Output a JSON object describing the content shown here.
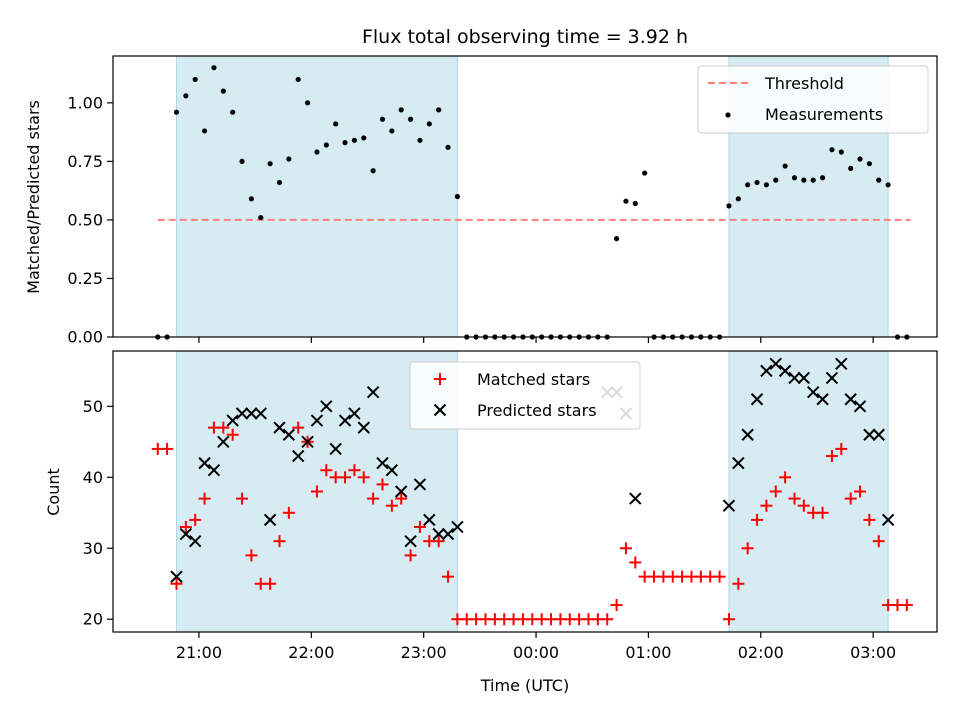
{
  "chart_data": [
    {
      "type": "scatter",
      "title": "Flux total observing time = 3.92 h",
      "xlabel": "",
      "ylabel": "Matched/Predicted stars",
      "ylim": [
        0,
        1.2
      ],
      "yticks": [
        "0.00",
        "0.25",
        "0.50",
        "0.75",
        "1.00"
      ],
      "xticks": [
        "21:00",
        "22:00",
        "23:00",
        "00:00",
        "01:00",
        "02:00",
        "03:00"
      ],
      "shaded_intervals": [
        [
          "20:48",
          "23:18"
        ],
        [
          "01:43",
          "03:08"
        ]
      ],
      "threshold": {
        "name": "Threshold",
        "value": 0.5,
        "x_range": [
          "20:38",
          "03:20"
        ],
        "color": "#ff7f7f"
      },
      "series": [
        {
          "name": "Measurements",
          "color": "#000000",
          "x": [
            "20:38",
            "20:43",
            "20:48",
            "20:53",
            "20:58",
            "21:03",
            "21:08",
            "21:13",
            "21:18",
            "21:23",
            "21:28",
            "21:33",
            "21:38",
            "21:43",
            "21:48",
            "21:53",
            "21:58",
            "22:03",
            "22:08",
            "22:13",
            "22:18",
            "22:23",
            "22:28",
            "22:33",
            "22:38",
            "22:43",
            "22:48",
            "22:53",
            "22:58",
            "23:03",
            "23:08",
            "23:13",
            "23:18",
            "23:23",
            "23:28",
            "23:33",
            "23:38",
            "23:43",
            "23:48",
            "23:53",
            "23:58",
            "00:03",
            "00:08",
            "00:13",
            "00:18",
            "00:23",
            "00:28",
            "00:33",
            "00:38",
            "00:43",
            "00:48",
            "00:53",
            "00:58",
            "01:03",
            "01:08",
            "01:13",
            "01:18",
            "01:23",
            "01:28",
            "01:33",
            "01:38",
            "01:43",
            "01:48",
            "01:53",
            "01:58",
            "02:03",
            "02:08",
            "02:13",
            "02:18",
            "02:23",
            "02:28",
            "02:33",
            "02:38",
            "02:43",
            "02:48",
            "02:53",
            "02:58",
            "03:03",
            "03:08",
            "03:13",
            "03:18"
          ],
          "values": [
            0,
            0,
            0.96,
            1.03,
            1.1,
            0.88,
            1.15,
            1.05,
            0.96,
            0.75,
            0.59,
            0.51,
            0.74,
            0.66,
            0.76,
            1.1,
            1.0,
            0.79,
            0.82,
            0.91,
            0.83,
            0.84,
            0.85,
            0.71,
            0.93,
            0.88,
            0.97,
            0.93,
            0.84,
            0.91,
            0.97,
            0.81,
            0.6,
            0,
            0,
            0,
            0,
            0,
            0,
            0,
            0,
            0,
            0,
            0,
            0,
            0,
            0,
            0,
            0,
            0.42,
            0.58,
            0.57,
            0.7,
            0,
            0,
            0,
            0,
            0,
            0,
            0,
            0,
            0.56,
            0.59,
            0.65,
            0.66,
            0.65,
            0.67,
            0.73,
            0.68,
            0.67,
            0.67,
            0.68,
            0.8,
            0.79,
            0.72,
            0.76,
            0.74,
            0.67,
            0.65,
            0,
            0
          ]
        }
      ]
    },
    {
      "type": "scatter",
      "title": "",
      "xlabel": "Time (UTC)",
      "ylabel": "Count",
      "ylim": [
        18.2,
        57.8
      ],
      "yticks": [
        "20",
        "30",
        "40",
        "50"
      ],
      "xticks": [
        "21:00",
        "22:00",
        "23:00",
        "00:00",
        "01:00",
        "02:00",
        "03:00"
      ],
      "shaded_intervals": [
        [
          "20:48",
          "23:18"
        ],
        [
          "01:43",
          "03:08"
        ]
      ],
      "series": [
        {
          "name": "Matched stars",
          "marker": "+",
          "color": "#ff0000",
          "x": [
            "20:38",
            "20:43",
            "20:48",
            "20:53",
            "20:58",
            "21:03",
            "21:08",
            "21:13",
            "21:18",
            "21:23",
            "21:28",
            "21:33",
            "21:38",
            "21:43",
            "21:48",
            "21:53",
            "21:58",
            "22:03",
            "22:08",
            "22:13",
            "22:18",
            "22:23",
            "22:28",
            "22:33",
            "22:38",
            "22:43",
            "22:48",
            "22:53",
            "22:58",
            "23:03",
            "23:08",
            "23:13",
            "23:18",
            "23:23",
            "23:28",
            "23:33",
            "23:38",
            "23:43",
            "23:48",
            "23:53",
            "23:58",
            "00:03",
            "00:08",
            "00:13",
            "00:18",
            "00:23",
            "00:28",
            "00:33",
            "00:38",
            "00:43",
            "00:48",
            "00:53",
            "00:58",
            "01:03",
            "01:08",
            "01:13",
            "01:18",
            "01:23",
            "01:28",
            "01:33",
            "01:38",
            "01:43",
            "01:48",
            "01:53",
            "01:58",
            "02:03",
            "02:08",
            "02:13",
            "02:18",
            "02:23",
            "02:28",
            "02:33",
            "02:38",
            "02:43",
            "02:48",
            "02:53",
            "02:58",
            "03:03",
            "03:08",
            "03:13",
            "03:18"
          ],
          "values": [
            44,
            44,
            25,
            33,
            34,
            37,
            47,
            47,
            46,
            37,
            29,
            25,
            25,
            31,
            35,
            47,
            45,
            38,
            41,
            40,
            40,
            41,
            40,
            37,
            39,
            36,
            37,
            29,
            33,
            31,
            31,
            26,
            20,
            20,
            20,
            20,
            20,
            20,
            20,
            20,
            20,
            20,
            20,
            20,
            20,
            20,
            20,
            20,
            20,
            22,
            30,
            28,
            26,
            26,
            26,
            26,
            26,
            26,
            26,
            26,
            26,
            20,
            25,
            30,
            34,
            36,
            38,
            40,
            37,
            36,
            35,
            35,
            43,
            44,
            37,
            38,
            34,
            31,
            22,
            22,
            22
          ]
        },
        {
          "name": "Predicted stars",
          "marker": "x",
          "color": "#000000",
          "x": [
            "20:48",
            "20:53",
            "20:58",
            "21:03",
            "21:08",
            "21:13",
            "21:18",
            "21:23",
            "21:28",
            "21:33",
            "21:38",
            "21:43",
            "21:48",
            "21:53",
            "21:58",
            "22:03",
            "22:08",
            "22:13",
            "22:18",
            "22:23",
            "22:28",
            "22:33",
            "22:38",
            "22:43",
            "22:48",
            "22:53",
            "22:58",
            "23:03",
            "23:08",
            "23:13",
            "23:18",
            "00:38",
            "00:43",
            "00:48",
            "00:53",
            "01:43",
            "01:48",
            "01:53",
            "01:58",
            "02:03",
            "02:08",
            "02:13",
            "02:18",
            "02:23",
            "02:28",
            "02:33",
            "02:38",
            "02:43",
            "02:48",
            "02:53",
            "02:58",
            "03:03",
            "03:08"
          ],
          "values": [
            26,
            32,
            31,
            42,
            41,
            45,
            48,
            49,
            49,
            49,
            34,
            47,
            46,
            43,
            45,
            48,
            50,
            44,
            48,
            49,
            47,
            52,
            42,
            41,
            38,
            31,
            39,
            34,
            32,
            32,
            33,
            52,
            52,
            49,
            37,
            36,
            42,
            46,
            51,
            55,
            56,
            55,
            54,
            54,
            52,
            51,
            54,
            56,
            51,
            50,
            46,
            46,
            34
          ]
        }
      ]
    }
  ]
}
